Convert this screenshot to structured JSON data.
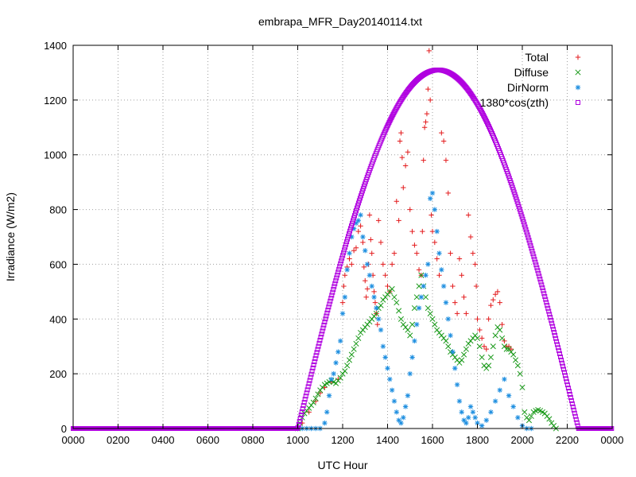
{
  "chart_data": {
    "type": "scatter",
    "title": "embrapa_MFR_Day20140114.txt",
    "xlabel": "UTC Hour",
    "ylabel": "Irradiance (W/m2)",
    "xlim": [
      0,
      24
    ],
    "ylim": [
      0,
      1400
    ],
    "x_ticks": [
      "0000",
      "0200",
      "0400",
      "0600",
      "0800",
      "1000",
      "1200",
      "1400",
      "1600",
      "1800",
      "2000",
      "2200",
      "0000"
    ],
    "y_ticks": [
      0,
      200,
      400,
      600,
      800,
      1000,
      1200,
      1400
    ],
    "grid": true,
    "legend_position": "top-right",
    "colors": {
      "total": "#e31a1c",
      "diffuse": "#1a9a1a",
      "dirnorm": "#1f8fe0",
      "cosine": "#b000e0"
    },
    "series": [
      {
        "name": "Total",
        "marker": "plus",
        "points": [
          [
            10.0,
            0
          ],
          [
            10.2,
            20
          ],
          [
            10.5,
            60
          ],
          [
            10.8,
            100
          ],
          [
            11.0,
            130
          ],
          [
            11.2,
            150
          ],
          [
            11.5,
            170
          ],
          [
            11.8,
            180
          ],
          [
            12.0,
            460
          ],
          [
            12.05,
            520
          ],
          [
            12.1,
            560
          ],
          [
            12.2,
            590
          ],
          [
            12.3,
            620
          ],
          [
            12.4,
            600
          ],
          [
            12.5,
            650
          ],
          [
            12.6,
            660
          ],
          [
            12.7,
            720
          ],
          [
            12.8,
            740
          ],
          [
            12.9,
            680
          ],
          [
            12.95,
            590
          ],
          [
            13.0,
            540
          ],
          [
            13.05,
            480
          ],
          [
            13.1,
            510
          ],
          [
            13.15,
            600
          ],
          [
            13.2,
            780
          ],
          [
            13.25,
            690
          ],
          [
            13.3,
            640
          ],
          [
            13.35,
            560
          ],
          [
            13.4,
            500
          ],
          [
            13.45,
            460
          ],
          [
            13.5,
            420
          ],
          [
            13.55,
            380
          ],
          [
            13.6,
            760
          ],
          [
            13.7,
            680
          ],
          [
            13.8,
            600
          ],
          [
            13.9,
            560
          ],
          [
            14.0,
            520
          ],
          [
            14.1,
            500
          ],
          [
            14.2,
            600
          ],
          [
            14.3,
            640
          ],
          [
            14.4,
            830
          ],
          [
            14.5,
            760
          ],
          [
            14.55,
            1050
          ],
          [
            14.6,
            1080
          ],
          [
            14.65,
            990
          ],
          [
            14.7,
            880
          ],
          [
            14.8,
            960
          ],
          [
            14.9,
            1010
          ],
          [
            15.0,
            800
          ],
          [
            15.1,
            720
          ],
          [
            15.2,
            670
          ],
          [
            15.3,
            640
          ],
          [
            15.4,
            580
          ],
          [
            15.5,
            560
          ],
          [
            15.55,
            720
          ],
          [
            15.6,
            980
          ],
          [
            15.65,
            1100
          ],
          [
            15.7,
            1120
          ],
          [
            15.75,
            1150
          ],
          [
            15.8,
            1240
          ],
          [
            15.85,
            1380
          ],
          [
            15.9,
            1200
          ],
          [
            15.95,
            780
          ],
          [
            16.0,
            720
          ],
          [
            16.1,
            680
          ],
          [
            16.2,
            620
          ],
          [
            16.3,
            560
          ],
          [
            16.4,
            1080
          ],
          [
            16.5,
            1050
          ],
          [
            16.6,
            980
          ],
          [
            16.7,
            860
          ],
          [
            16.8,
            640
          ],
          [
            16.9,
            520
          ],
          [
            17.0,
            460
          ],
          [
            17.1,
            420
          ],
          [
            17.2,
            620
          ],
          [
            17.3,
            560
          ],
          [
            17.4,
            480
          ],
          [
            17.5,
            420
          ],
          [
            17.6,
            780
          ],
          [
            17.7,
            700
          ],
          [
            17.8,
            640
          ],
          [
            17.9,
            600
          ],
          [
            17.95,
            520
          ],
          [
            18.0,
            400
          ],
          [
            18.1,
            360
          ],
          [
            18.2,
            330
          ],
          [
            18.3,
            300
          ],
          [
            18.4,
            290
          ],
          [
            18.5,
            400
          ],
          [
            18.6,
            450
          ],
          [
            18.7,
            470
          ],
          [
            18.8,
            490
          ],
          [
            18.9,
            500
          ],
          [
            19.0,
            460
          ],
          [
            19.1,
            380
          ],
          [
            19.2,
            320
          ],
          [
            19.3,
            300
          ],
          [
            19.4,
            300
          ],
          [
            19.5,
            290
          ]
        ]
      },
      {
        "name": "Diffuse",
        "marker": "cross",
        "points": [
          [
            10.0,
            0
          ],
          [
            10.1,
            20
          ],
          [
            10.2,
            40
          ],
          [
            10.3,
            55
          ],
          [
            10.4,
            65
          ],
          [
            10.5,
            75
          ],
          [
            10.6,
            85
          ],
          [
            10.7,
            95
          ],
          [
            10.8,
            110
          ],
          [
            10.9,
            125
          ],
          [
            11.0,
            140
          ],
          [
            11.1,
            150
          ],
          [
            11.2,
            160
          ],
          [
            11.3,
            165
          ],
          [
            11.4,
            170
          ],
          [
            11.5,
            175
          ],
          [
            11.6,
            170
          ],
          [
            11.7,
            165
          ],
          [
            11.8,
            175
          ],
          [
            11.9,
            185
          ],
          [
            12.0,
            200
          ],
          [
            12.1,
            210
          ],
          [
            12.2,
            230
          ],
          [
            12.3,
            250
          ],
          [
            12.4,
            270
          ],
          [
            12.5,
            290
          ],
          [
            12.6,
            310
          ],
          [
            12.7,
            330
          ],
          [
            12.8,
            350
          ],
          [
            12.9,
            360
          ],
          [
            13.0,
            370
          ],
          [
            13.1,
            380
          ],
          [
            13.2,
            390
          ],
          [
            13.3,
            400
          ],
          [
            13.4,
            410
          ],
          [
            13.5,
            420
          ],
          [
            13.6,
            440
          ],
          [
            13.7,
            450
          ],
          [
            13.8,
            470
          ],
          [
            13.9,
            480
          ],
          [
            14.0,
            490
          ],
          [
            14.1,
            500
          ],
          [
            14.2,
            510
          ],
          [
            14.3,
            480
          ],
          [
            14.4,
            460
          ],
          [
            14.5,
            430
          ],
          [
            14.6,
            400
          ],
          [
            14.7,
            380
          ],
          [
            14.8,
            370
          ],
          [
            14.9,
            360
          ],
          [
            15.0,
            340
          ],
          [
            15.1,
            380
          ],
          [
            15.2,
            440
          ],
          [
            15.3,
            480
          ],
          [
            15.4,
            520
          ],
          [
            15.5,
            560
          ],
          [
            15.6,
            520
          ],
          [
            15.7,
            480
          ],
          [
            15.8,
            440
          ],
          [
            15.9,
            420
          ],
          [
            16.0,
            400
          ],
          [
            16.1,
            380
          ],
          [
            16.2,
            360
          ],
          [
            16.3,
            350
          ],
          [
            16.4,
            340
          ],
          [
            16.5,
            330
          ],
          [
            16.6,
            320
          ],
          [
            16.7,
            300
          ],
          [
            16.8,
            280
          ],
          [
            16.9,
            270
          ],
          [
            17.0,
            260
          ],
          [
            17.1,
            250
          ],
          [
            17.2,
            240
          ],
          [
            17.3,
            250
          ],
          [
            17.4,
            270
          ],
          [
            17.5,
            290
          ],
          [
            17.6,
            310
          ],
          [
            17.7,
            320
          ],
          [
            17.8,
            330
          ],
          [
            17.9,
            340
          ],
          [
            18.0,
            330
          ],
          [
            18.1,
            300
          ],
          [
            18.2,
            260
          ],
          [
            18.3,
            230
          ],
          [
            18.4,
            220
          ],
          [
            18.5,
            230
          ],
          [
            18.6,
            260
          ],
          [
            18.7,
            300
          ],
          [
            18.8,
            340
          ],
          [
            18.9,
            370
          ],
          [
            19.0,
            360
          ],
          [
            19.1,
            330
          ],
          [
            19.2,
            300
          ],
          [
            19.3,
            290
          ],
          [
            19.4,
            290
          ],
          [
            19.5,
            280
          ],
          [
            19.6,
            270
          ],
          [
            19.7,
            250
          ],
          [
            19.8,
            230
          ],
          [
            19.9,
            200
          ],
          [
            20.0,
            150
          ],
          [
            20.1,
            60
          ],
          [
            20.2,
            40
          ],
          [
            20.3,
            30
          ],
          [
            20.4,
            45
          ],
          [
            20.5,
            60
          ],
          [
            20.6,
            65
          ],
          [
            20.7,
            68
          ],
          [
            20.8,
            65
          ],
          [
            20.9,
            60
          ],
          [
            21.0,
            55
          ],
          [
            21.1,
            45
          ],
          [
            21.2,
            35
          ],
          [
            21.3,
            20
          ],
          [
            21.4,
            10
          ],
          [
            21.5,
            0
          ]
        ]
      },
      {
        "name": "DirNorm",
        "marker": "star",
        "points": [
          [
            10.0,
            0
          ],
          [
            10.2,
            0
          ],
          [
            10.4,
            0
          ],
          [
            10.6,
            0
          ],
          [
            10.8,
            0
          ],
          [
            11.0,
            0
          ],
          [
            11.2,
            20
          ],
          [
            11.3,
            60
          ],
          [
            11.4,
            120
          ],
          [
            11.5,
            180
          ],
          [
            11.6,
            200
          ],
          [
            11.7,
            240
          ],
          [
            11.8,
            280
          ],
          [
            11.9,
            320
          ],
          [
            12.0,
            420
          ],
          [
            12.1,
            480
          ],
          [
            12.2,
            580
          ],
          [
            12.3,
            640
          ],
          [
            12.4,
            700
          ],
          [
            12.5,
            730
          ],
          [
            12.6,
            750
          ],
          [
            12.7,
            760
          ],
          [
            12.8,
            780
          ],
          [
            12.9,
            700
          ],
          [
            13.0,
            650
          ],
          [
            13.1,
            600
          ],
          [
            13.2,
            560
          ],
          [
            13.3,
            520
          ],
          [
            13.4,
            480
          ],
          [
            13.5,
            440
          ],
          [
            13.6,
            400
          ],
          [
            13.7,
            360
          ],
          [
            13.8,
            300
          ],
          [
            13.9,
            260
          ],
          [
            14.0,
            220
          ],
          [
            14.1,
            180
          ],
          [
            14.2,
            140
          ],
          [
            14.3,
            100
          ],
          [
            14.4,
            60
          ],
          [
            14.5,
            30
          ],
          [
            14.6,
            20
          ],
          [
            14.7,
            40
          ],
          [
            14.8,
            80
          ],
          [
            14.9,
            120
          ],
          [
            15.0,
            200
          ],
          [
            15.1,
            260
          ],
          [
            15.2,
            320
          ],
          [
            15.3,
            380
          ],
          [
            15.4,
            440
          ],
          [
            15.5,
            480
          ],
          [
            15.6,
            520
          ],
          [
            15.7,
            560
          ],
          [
            15.8,
            600
          ],
          [
            15.9,
            840
          ],
          [
            16.0,
            860
          ],
          [
            16.1,
            800
          ],
          [
            16.2,
            720
          ],
          [
            16.3,
            640
          ],
          [
            16.4,
            580
          ],
          [
            16.5,
            520
          ],
          [
            16.6,
            460
          ],
          [
            16.7,
            400
          ],
          [
            16.8,
            340
          ],
          [
            16.9,
            280
          ],
          [
            17.0,
            220
          ],
          [
            17.1,
            160
          ],
          [
            17.2,
            100
          ],
          [
            17.3,
            60
          ],
          [
            17.4,
            30
          ],
          [
            17.5,
            20
          ],
          [
            17.6,
            40
          ],
          [
            17.7,
            80
          ],
          [
            17.8,
            60
          ],
          [
            17.9,
            40
          ],
          [
            18.0,
            20
          ],
          [
            18.2,
            10
          ],
          [
            18.4,
            30
          ],
          [
            18.6,
            60
          ],
          [
            18.8,
            100
          ],
          [
            19.0,
            140
          ],
          [
            19.2,
            180
          ],
          [
            19.4,
            120
          ],
          [
            19.6,
            80
          ],
          [
            19.8,
            40
          ],
          [
            20.0,
            10
          ],
          [
            20.2,
            0
          ],
          [
            20.4,
            0
          ]
        ]
      },
      {
        "name": "1380*cos(zth)",
        "marker": "square",
        "sunrise": 10.0,
        "sunset": 22.5,
        "peak": 1310
      }
    ]
  }
}
